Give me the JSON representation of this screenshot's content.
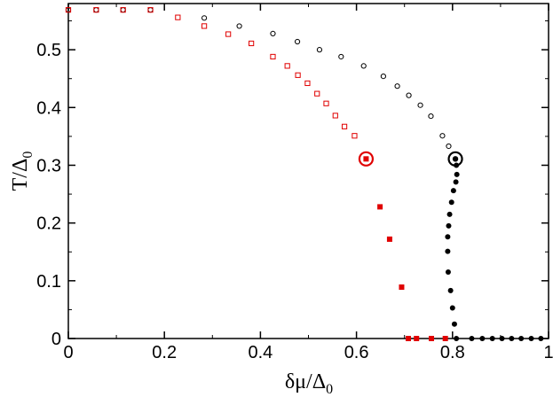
{
  "chart_data": {
    "type": "scatter",
    "xlabel": "δμ/Δ",
    "xlabel_sub": "0",
    "ylabel": "T/Δ",
    "ylabel_sub": "0",
    "xlim": [
      0,
      1
    ],
    "ylim": [
      0,
      0.58
    ],
    "x_ticks": [
      {
        "value": 0,
        "label": "0"
      },
      {
        "value": 0.2,
        "label": "0.2"
      },
      {
        "value": 0.4,
        "label": "0.4"
      },
      {
        "value": 0.6,
        "label": "0.6"
      },
      {
        "value": 0.8,
        "label": "0.8"
      },
      {
        "value": 1,
        "label": "1"
      }
    ],
    "y_ticks": [
      {
        "value": 0,
        "label": "0"
      },
      {
        "value": 0.1,
        "label": "0.1"
      },
      {
        "value": 0.2,
        "label": "0.2"
      },
      {
        "value": 0.3,
        "label": "0.3"
      },
      {
        "value": 0.4,
        "label": "0.4"
      },
      {
        "value": 0.5,
        "label": "0.5"
      }
    ],
    "grid": false,
    "series": [
      {
        "marker": "open-circle",
        "color": "#000000",
        "points": [
          [
            0.0,
            0.569
          ],
          [
            0.058,
            0.569
          ],
          [
            0.114,
            0.569
          ],
          [
            0.171,
            0.569
          ],
          [
            0.283,
            0.555
          ],
          [
            0.356,
            0.541
          ],
          [
            0.426,
            0.528
          ],
          [
            0.477,
            0.514
          ],
          [
            0.523,
            0.5
          ],
          [
            0.568,
            0.488
          ],
          [
            0.615,
            0.472
          ],
          [
            0.656,
            0.454
          ],
          [
            0.685,
            0.437
          ],
          [
            0.709,
            0.421
          ],
          [
            0.733,
            0.404
          ],
          [
            0.755,
            0.385
          ],
          [
            0.779,
            0.351
          ],
          [
            0.792,
            0.333
          ]
        ]
      },
      {
        "marker": "open-square",
        "color": "#e00000",
        "points": [
          [
            0.0,
            0.569
          ],
          [
            0.058,
            0.569
          ],
          [
            0.114,
            0.569
          ],
          [
            0.171,
            0.569
          ],
          [
            0.228,
            0.556
          ],
          [
            0.283,
            0.541
          ],
          [
            0.333,
            0.527
          ],
          [
            0.381,
            0.511
          ],
          [
            0.426,
            0.488
          ],
          [
            0.456,
            0.472
          ],
          [
            0.478,
            0.456
          ],
          [
            0.498,
            0.442
          ],
          [
            0.518,
            0.424
          ],
          [
            0.537,
            0.407
          ],
          [
            0.556,
            0.386
          ],
          [
            0.575,
            0.367
          ],
          [
            0.596,
            0.351
          ]
        ]
      },
      {
        "marker": "filled-circle",
        "color": "#000000",
        "points": [
          [
            0.808,
            0.3
          ],
          [
            0.809,
            0.284
          ],
          [
            0.807,
            0.271
          ],
          [
            0.802,
            0.256
          ],
          [
            0.798,
            0.236
          ],
          [
            0.794,
            0.215
          ],
          [
            0.792,
            0.195
          ],
          [
            0.79,
            0.176
          ],
          [
            0.79,
            0.151
          ],
          [
            0.791,
            0.115
          ],
          [
            0.796,
            0.083
          ],
          [
            0.8,
            0.053
          ],
          [
            0.804,
            0.025
          ],
          [
            0.808,
            0.0
          ],
          [
            0.84,
            0.0
          ],
          [
            0.862,
            0.0
          ],
          [
            0.883,
            0.0
          ],
          [
            0.903,
            0.0
          ],
          [
            0.923,
            0.0
          ],
          [
            0.943,
            0.0
          ],
          [
            0.964,
            0.0
          ],
          [
            0.984,
            0.0
          ]
        ]
      },
      {
        "marker": "filled-square",
        "color": "#e00000",
        "points": [
          [
            0.649,
            0.228
          ],
          [
            0.669,
            0.172
          ],
          [
            0.694,
            0.089
          ],
          [
            0.708,
            0.0
          ],
          [
            0.725,
            0.0
          ],
          [
            0.756,
            0.0
          ],
          [
            0.785,
            0.0
          ]
        ]
      }
    ],
    "highlights": [
      {
        "x": 0.62,
        "y": 0.311,
        "color": "#e00000",
        "inner": "filled-square"
      },
      {
        "x": 0.806,
        "y": 0.311,
        "color": "#000000",
        "inner": "filled-circle"
      }
    ]
  }
}
